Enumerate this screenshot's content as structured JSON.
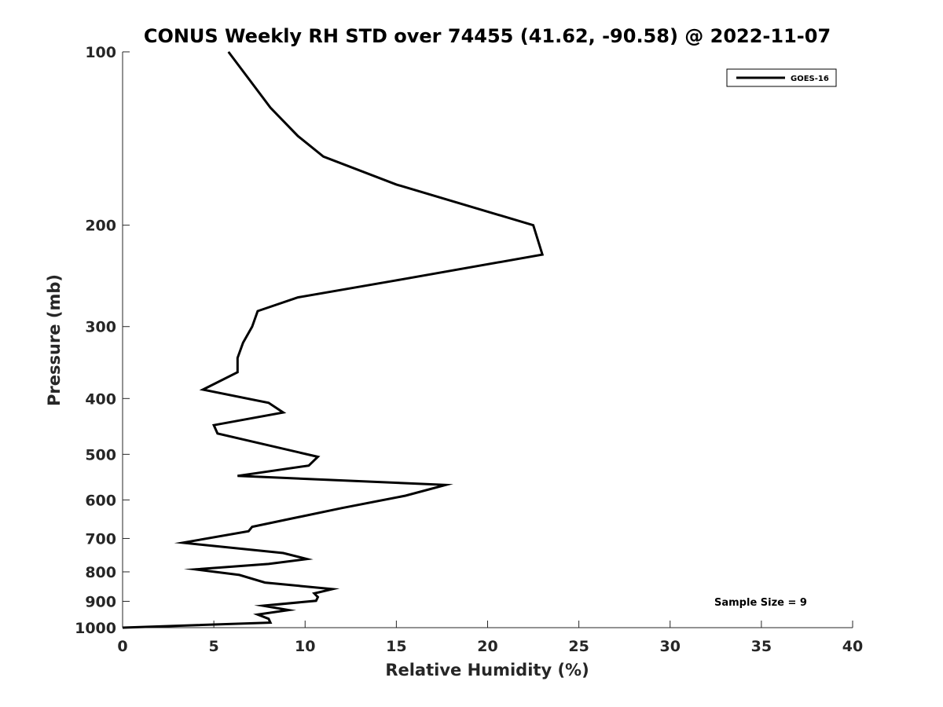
{
  "chart_data": {
    "type": "line",
    "title": "CONUS Weekly RH STD over 74455 (41.62, -90.58) @ 2022-11-07",
    "xlabel": "Relative Humidity (%)",
    "ylabel": "Pressure (mb)",
    "xlim": [
      0,
      40
    ],
    "ylim": [
      100,
      1000
    ],
    "y_scale": "log",
    "y_reversed": true,
    "grid": false,
    "legend_position": "top-right",
    "x_ticks": [
      0,
      5,
      10,
      15,
      20,
      25,
      30,
      35,
      40
    ],
    "x_tick_labels": [
      "0",
      "5",
      "10",
      "15",
      "20",
      "25",
      "30",
      "35",
      "40"
    ],
    "y_ticks": [
      100,
      200,
      300,
      400,
      500,
      600,
      700,
      800,
      900,
      1000
    ],
    "y_tick_labels": [
      "100",
      "200",
      "300",
      "400",
      "500",
      "600",
      "700",
      "800",
      "900",
      "1000"
    ],
    "series": [
      {
        "name": "GOES-16",
        "color": "#000000",
        "points": [
          [
            5.8,
            100
          ],
          [
            8.1,
            125
          ],
          [
            9.6,
            140
          ],
          [
            11.0,
            152
          ],
          [
            15.0,
            170
          ],
          [
            22.5,
            200
          ],
          [
            23.0,
            225
          ],
          [
            14.8,
            250
          ],
          [
            9.6,
            267
          ],
          [
            7.4,
            282
          ],
          [
            7.1,
            300
          ],
          [
            6.6,
            320
          ],
          [
            6.3,
            340
          ],
          [
            6.3,
            360
          ],
          [
            4.4,
            386
          ],
          [
            8.0,
            407
          ],
          [
            8.8,
            423
          ],
          [
            5.0,
            445
          ],
          [
            5.2,
            460
          ],
          [
            10.7,
            505
          ],
          [
            10.2,
            523
          ],
          [
            6.3,
            545
          ],
          [
            17.7,
            565
          ],
          [
            15.5,
            590
          ],
          [
            12.0,
            620
          ],
          [
            9.2,
            647
          ],
          [
            7.1,
            668
          ],
          [
            6.9,
            680
          ],
          [
            3.3,
            712
          ],
          [
            8.8,
            742
          ],
          [
            10.1,
            760
          ],
          [
            8.0,
            775
          ],
          [
            4.0,
            792
          ],
          [
            6.4,
            810
          ],
          [
            7.8,
            835
          ],
          [
            11.5,
            857
          ],
          [
            10.5,
            872
          ],
          [
            10.7,
            885
          ],
          [
            10.6,
            898
          ],
          [
            7.7,
            916
          ],
          [
            9.1,
            932
          ],
          [
            7.4,
            949
          ],
          [
            8.0,
            965
          ],
          [
            8.1,
            980
          ],
          [
            0.0,
            1000
          ]
        ]
      }
    ],
    "annotations": [
      {
        "text": "Sample Size = 9",
        "position": "bottom-right"
      }
    ]
  }
}
